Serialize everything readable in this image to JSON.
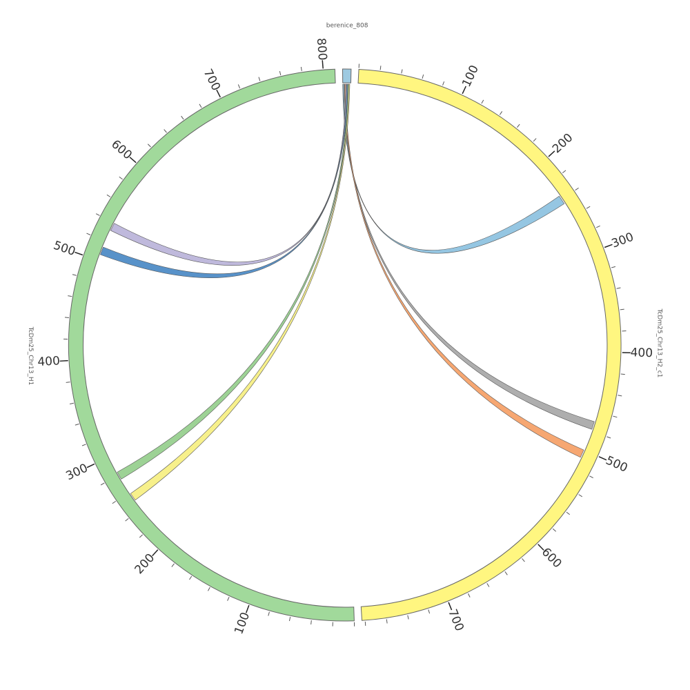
{
  "segments": [
    {
      "name": "berenice_808",
      "length": 8,
      "color": "#9ecae1"
    },
    {
      "name": "TcDm25_Chr13_H2_c1",
      "length": 783,
      "color": "#fff680",
      "ticks": [
        100,
        200,
        300,
        400,
        500,
        600,
        700
      ]
    },
    {
      "name": "TcDm25_Chr13_H1",
      "length": 811,
      "color": "#a1d99b",
      "ticks": [
        100,
        200,
        300,
        400,
        500,
        600,
        700,
        800
      ]
    }
  ],
  "minor_tick_step": 20,
  "links": [
    {
      "source": [
        0,
        1
      ],
      "target_segment": 1,
      "target": [
        236,
        245
      ],
      "color": "#8fc3e0"
    },
    {
      "source": [
        1,
        2
      ],
      "target_segment": 1,
      "target": [
        470,
        478
      ],
      "color": "#aaaaaa"
    },
    {
      "source": [
        2,
        3
      ],
      "target_segment": 1,
      "target": [
        500,
        508
      ],
      "color": "#f5a26a"
    },
    {
      "source": [
        3,
        4
      ],
      "target_segment": 2,
      "target": [
        532,
        540
      ],
      "color": "#bcb5da"
    },
    {
      "source": [
        4,
        5
      ],
      "target_segment": 2,
      "target": [
        506,
        514
      ],
      "color": "#4f8cc6"
    },
    {
      "source": [
        5,
        6
      ],
      "target_segment": 2,
      "target": [
        275,
        283
      ],
      "color": "#98d08f"
    },
    {
      "source": [
        6,
        7
      ],
      "target_segment": 2,
      "target": [
        250,
        258
      ],
      "color": "#f7ef85"
    }
  ]
}
